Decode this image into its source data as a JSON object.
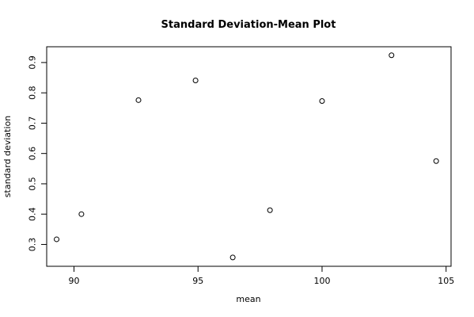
{
  "chart_data": {
    "type": "scatter",
    "title": "Standard Deviation-Mean Plot",
    "xlabel": "mean",
    "ylabel": "standard deviation",
    "xlim": [
      88.9,
      105.2
    ],
    "ylim": [
      0.228,
      0.952
    ],
    "xticks": [
      90,
      95,
      100,
      105
    ],
    "xtick_labels": [
      "90",
      "95",
      "100",
      "105"
    ],
    "yticks": [
      0.3,
      0.4,
      0.5,
      0.6,
      0.7,
      0.8,
      0.9
    ],
    "ytick_labels": [
      "0.3",
      "0.4",
      "0.5",
      "0.6",
      "0.7",
      "0.8",
      "0.9"
    ],
    "grid": false,
    "marker": "open-circle",
    "points": [
      {
        "x": 89.3,
        "y": 0.317
      },
      {
        "x": 90.3,
        "y": 0.4
      },
      {
        "x": 92.6,
        "y": 0.776
      },
      {
        "x": 94.9,
        "y": 0.841
      },
      {
        "x": 96.4,
        "y": 0.257
      },
      {
        "x": 97.9,
        "y": 0.413
      },
      {
        "x": 100.0,
        "y": 0.773
      },
      {
        "x": 102.8,
        "y": 0.924
      },
      {
        "x": 104.6,
        "y": 0.575
      }
    ]
  }
}
